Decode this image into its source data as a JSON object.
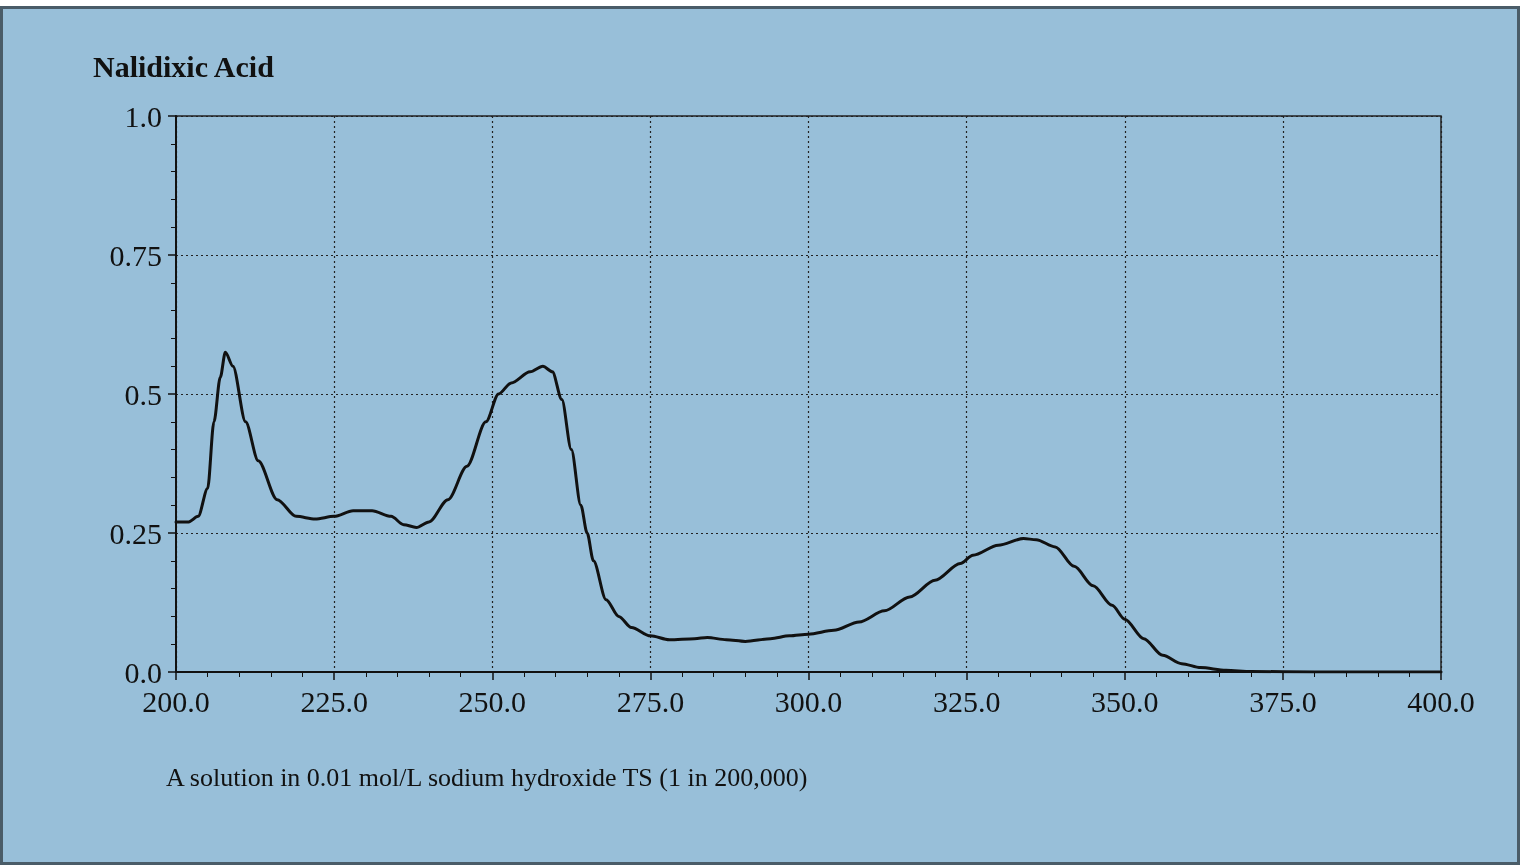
{
  "chart_data": {
    "type": "line",
    "title": "Nalidixic Acid",
    "annotations": [
      "A solution in 0.01 mol/L sodium hydroxide TS (1 in 200,000)"
    ],
    "x": [
      200,
      202,
      203.5,
      205,
      206,
      207,
      207.8,
      209,
      211,
      213,
      216,
      219,
      222,
      225,
      228,
      231,
      234,
      236,
      238,
      240,
      243,
      246,
      249,
      251,
      253,
      256,
      258,
      259.5,
      261,
      262.5,
      264,
      265,
      266,
      268,
      270,
      272,
      275,
      278,
      282,
      284,
      287,
      290,
      294,
      297,
      300,
      304,
      308,
      312,
      316,
      320,
      324,
      326,
      330,
      334,
      336,
      339,
      342,
      345,
      348,
      350,
      353,
      356,
      359,
      362,
      366,
      370,
      380,
      390,
      400
    ],
    "series": [
      {
        "color": "#111111",
        "values": [
          0.27,
          0.27,
          0.28,
          0.33,
          0.45,
          0.53,
          0.575,
          0.55,
          0.45,
          0.38,
          0.31,
          0.28,
          0.275,
          0.28,
          0.29,
          0.29,
          0.28,
          0.265,
          0.26,
          0.27,
          0.31,
          0.37,
          0.45,
          0.5,
          0.52,
          0.54,
          0.55,
          0.54,
          0.49,
          0.4,
          0.3,
          0.25,
          0.2,
          0.13,
          0.1,
          0.08,
          0.065,
          0.058,
          0.06,
          0.062,
          0.058,
          0.055,
          0.06,
          0.065,
          0.068,
          0.075,
          0.09,
          0.11,
          0.135,
          0.165,
          0.195,
          0.21,
          0.228,
          0.24,
          0.238,
          0.225,
          0.19,
          0.155,
          0.12,
          0.095,
          0.06,
          0.03,
          0.015,
          0.008,
          0.003,
          0.001,
          0,
          0,
          0
        ]
      }
    ],
    "xlim": [
      200,
      400
    ],
    "xticks": [
      {
        "value": 200,
        "label": "200.0"
      },
      {
        "value": 225,
        "label": "225.0"
      },
      {
        "value": 250,
        "label": "250.0"
      },
      {
        "value": 275,
        "label": "275.0"
      },
      {
        "value": 300,
        "label": "300.0"
      },
      {
        "value": 325,
        "label": "325.0"
      },
      {
        "value": 350,
        "label": "350.0"
      },
      {
        "value": 375,
        "label": "375.0"
      },
      {
        "value": 400,
        "label": "400.0"
      }
    ],
    "ylim": [
      0,
      1
    ],
    "yticks": [
      {
        "value": 0,
        "label": "0.0"
      },
      0.25,
      0.5,
      0.75,
      {
        "value": 1,
        "label": "1.0"
      }
    ],
    "grid": true,
    "marker": "none",
    "line_style": "solid"
  }
}
